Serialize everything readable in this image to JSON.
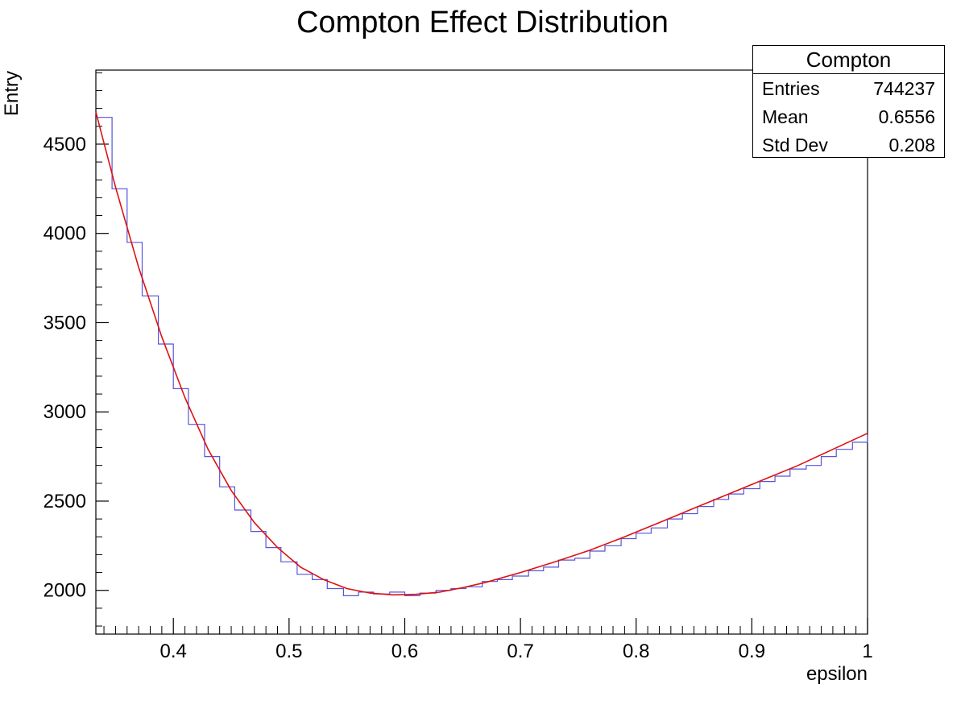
{
  "chart_data": {
    "type": "histogram",
    "title": "Compton Effect Distribution",
    "xlabel": "epsilon",
    "ylabel": "Entry",
    "xlim": [
      0.333,
      1.0
    ],
    "ylim": [
      1755,
      4915
    ],
    "x_ticks": [
      "0.4",
      "0.5",
      "0.6",
      "0.7",
      "0.8",
      "0.9",
      "1"
    ],
    "y_ticks": [
      "2000",
      "2500",
      "3000",
      "3500",
      "4000",
      "4500"
    ],
    "x_tick_values": [
      0.4,
      0.5,
      0.6,
      0.7,
      0.8,
      0.9,
      1.0
    ],
    "y_tick_values": [
      2000,
      2500,
      3000,
      3500,
      4000,
      4500
    ],
    "histogram_color": "#5555dd",
    "fit_color": "#e01010",
    "series": [
      {
        "type": "step",
        "x": [
          0.333,
          0.347,
          0.36,
          0.373,
          0.387,
          0.4,
          0.413,
          0.427,
          0.44,
          0.453,
          0.467,
          0.48,
          0.493,
          0.507,
          0.52,
          0.533,
          0.547,
          0.56,
          0.573,
          0.587,
          0.6,
          0.613,
          0.627,
          0.64,
          0.653,
          0.667,
          0.68,
          0.693,
          0.707,
          0.72,
          0.733,
          0.747,
          0.76,
          0.773,
          0.787,
          0.8,
          0.813,
          0.827,
          0.84,
          0.853,
          0.867,
          0.88,
          0.893,
          0.907,
          0.92,
          0.933,
          0.947,
          0.96,
          0.973,
          0.987,
          1.0
        ],
        "values": [
          4650,
          4250,
          3950,
          3650,
          3380,
          3130,
          2930,
          2750,
          2580,
          2450,
          2330,
          2240,
          2160,
          2090,
          2060,
          2010,
          1970,
          1990,
          1980,
          1990,
          1970,
          1985,
          2000,
          2010,
          2020,
          2050,
          2060,
          2080,
          2110,
          2130,
          2170,
          2180,
          2220,
          2250,
          2290,
          2320,
          2350,
          2400,
          2430,
          2470,
          2510,
          2540,
          2570,
          2610,
          2640,
          2680,
          2700,
          2750,
          2790,
          2830,
          2870
        ]
      },
      {
        "type": "line",
        "x": [
          0.333,
          0.35,
          0.37,
          0.39,
          0.41,
          0.43,
          0.45,
          0.47,
          0.49,
          0.51,
          0.53,
          0.55,
          0.57,
          0.59,
          0.61,
          0.63,
          0.65,
          0.67,
          0.7,
          0.73,
          0.76,
          0.79,
          0.82,
          0.85,
          0.88,
          0.91,
          0.94,
          0.97,
          1.0
        ],
        "values": [
          4680,
          4260,
          3810,
          3420,
          3080,
          2790,
          2560,
          2380,
          2240,
          2130,
          2060,
          2010,
          1985,
          1975,
          1978,
          1990,
          2015,
          2045,
          2100,
          2160,
          2225,
          2300,
          2380,
          2460,
          2540,
          2620,
          2700,
          2790,
          2880
        ]
      }
    ]
  },
  "stats": {
    "title": "Compton",
    "rows": [
      {
        "key": "Entries",
        "value": "744237"
      },
      {
        "key": "Mean",
        "value": "0.6556"
      },
      {
        "key": "Std Dev",
        "value": "0.208"
      }
    ]
  }
}
